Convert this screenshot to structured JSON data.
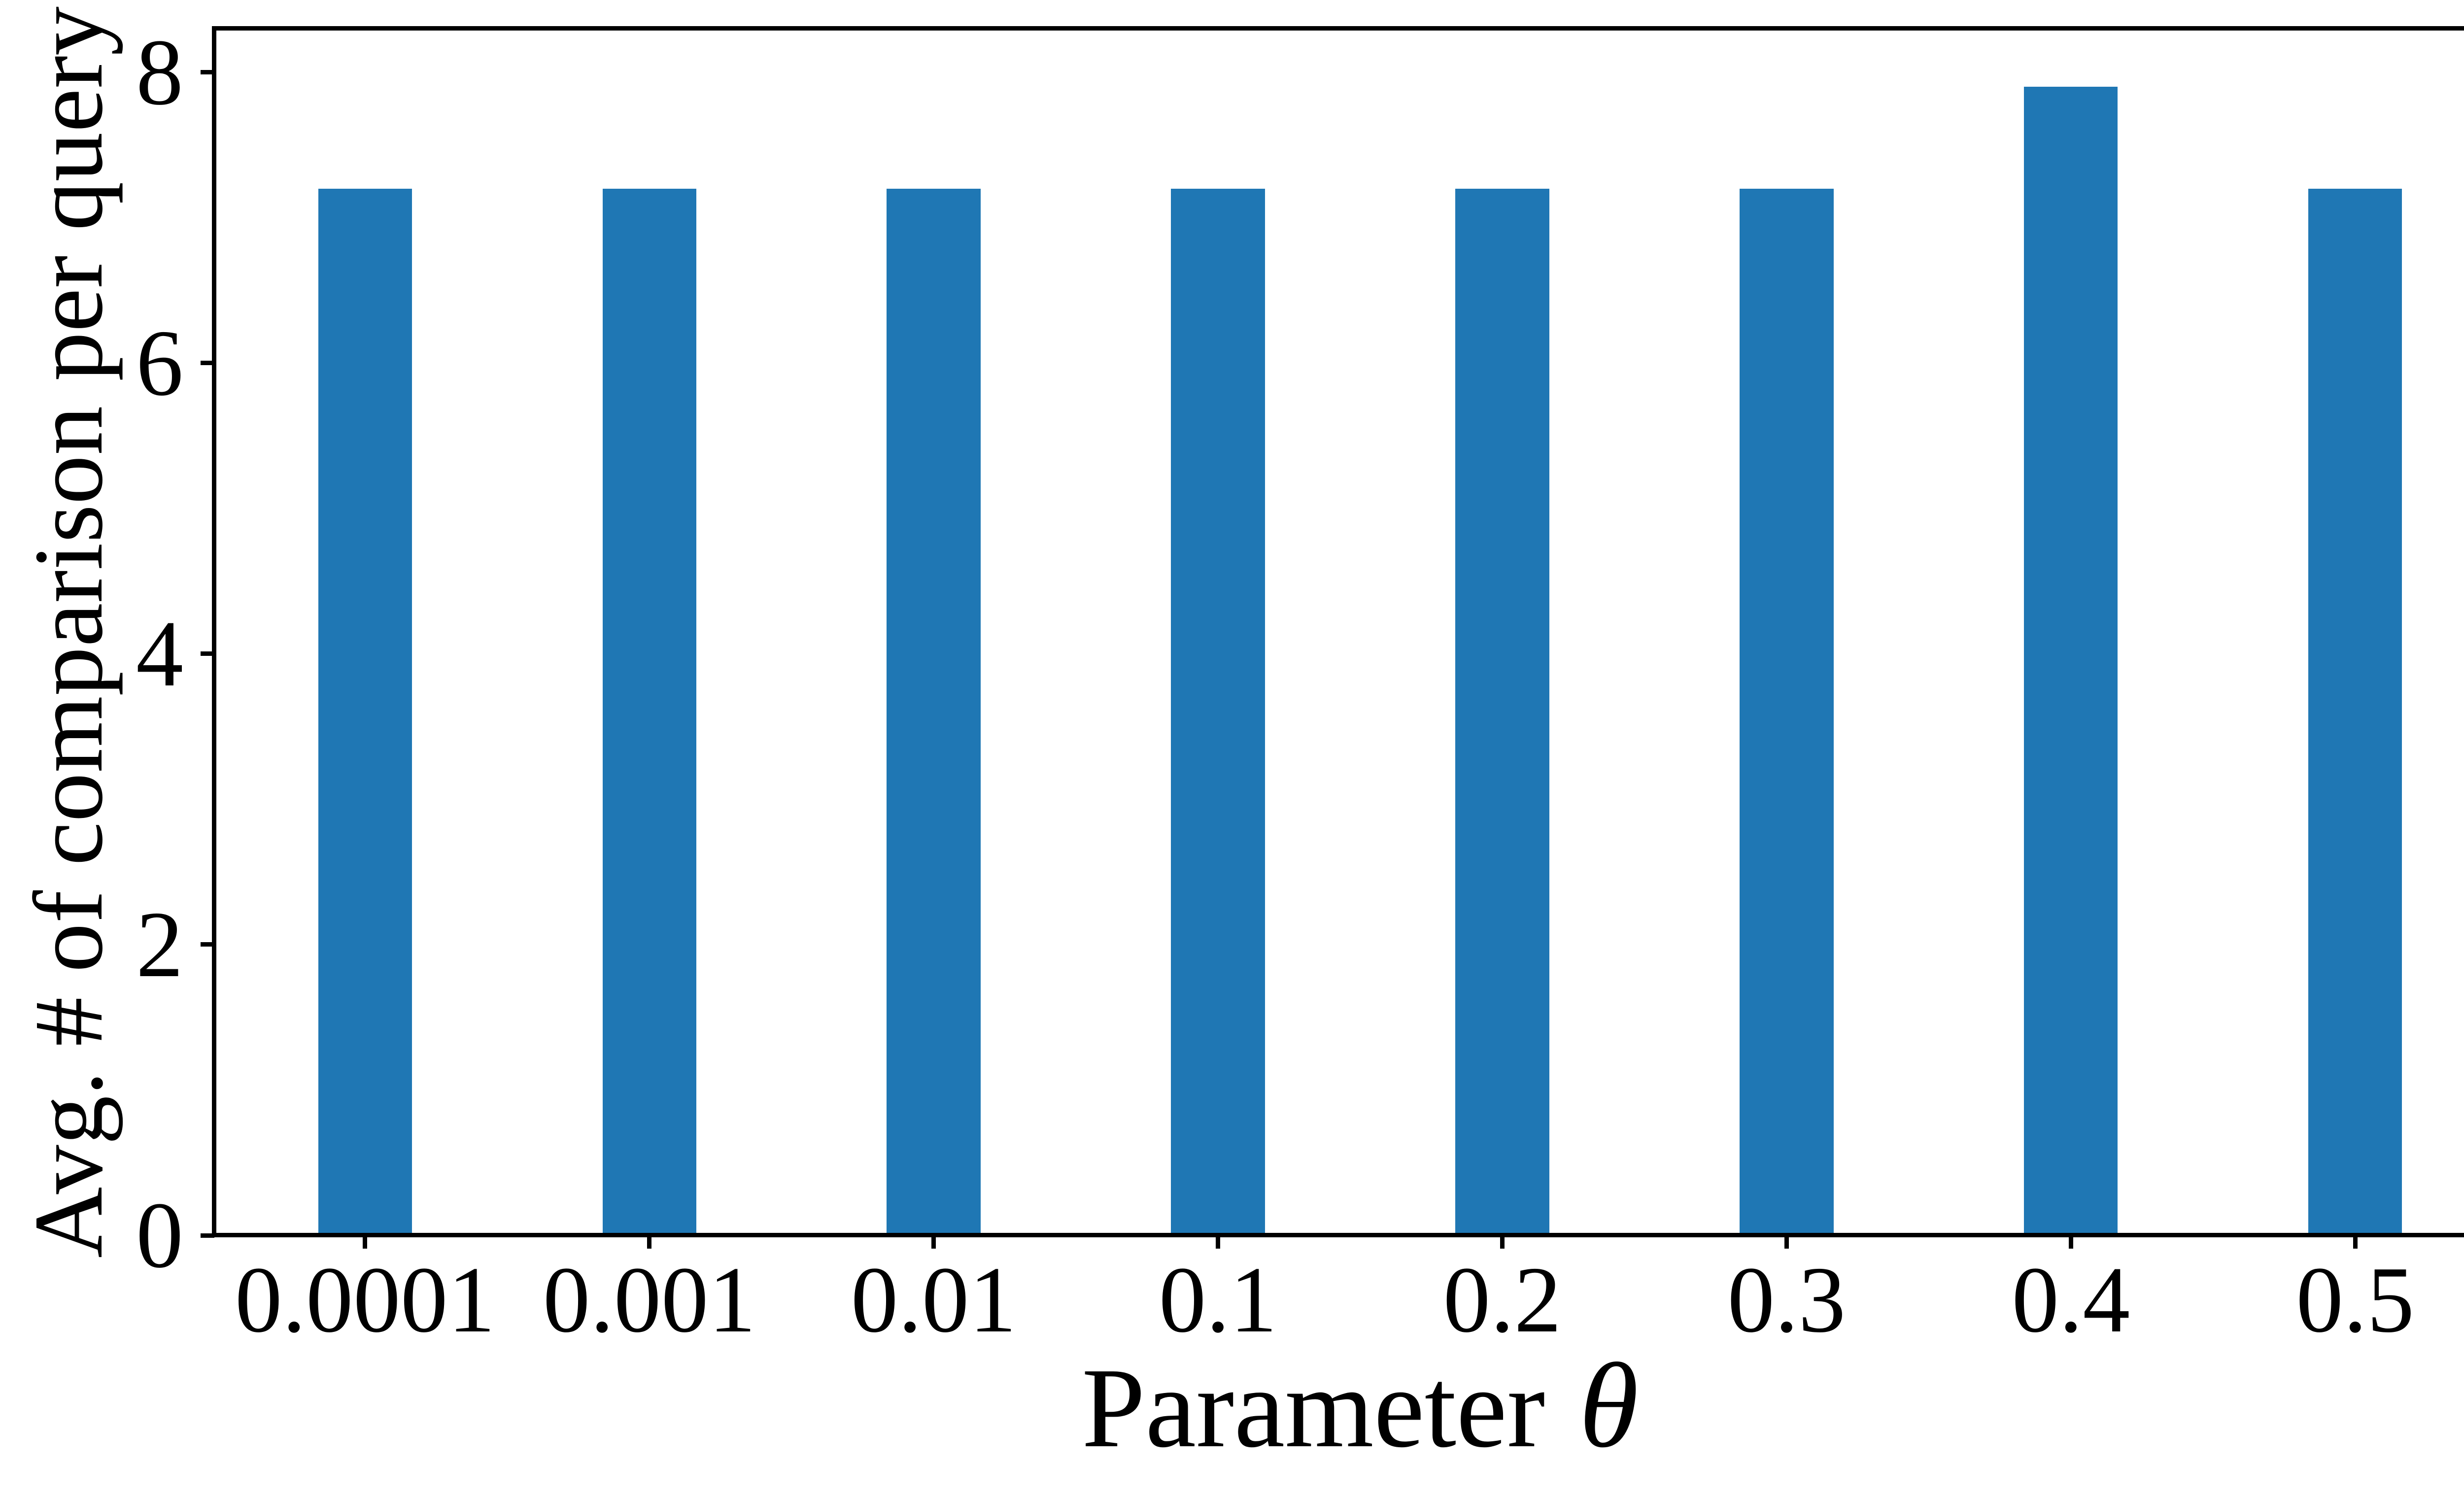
{
  "chart_data": {
    "type": "bar",
    "title": "",
    "categories": [
      "0.0001",
      "0.001",
      "0.01",
      "0.1",
      "0.2",
      "0.3",
      "0.4",
      "0.5"
    ],
    "values": [
      7.2,
      7.2,
      7.2,
      7.2,
      7.2,
      7.2,
      7.9,
      7.2
    ],
    "xlabel": "Parameter θ",
    "xlabel_text": "Parameter",
    "xlabel_symbol": "θ",
    "ylabel": "Avg. # of comparison per query",
    "ytick_labels": [
      "0",
      "2",
      "4",
      "6",
      "8"
    ],
    "ytick_values": [
      0,
      2,
      4,
      6,
      8
    ],
    "ylim": [
      0,
      8.3
    ],
    "xlim": [
      -0.53,
      7.53
    ],
    "bar_width": 0.33,
    "bar_color": "#1f77b4",
    "axis_color": "#000000",
    "background_color": "#ffffff",
    "grid": false,
    "legend_position": "none"
  }
}
